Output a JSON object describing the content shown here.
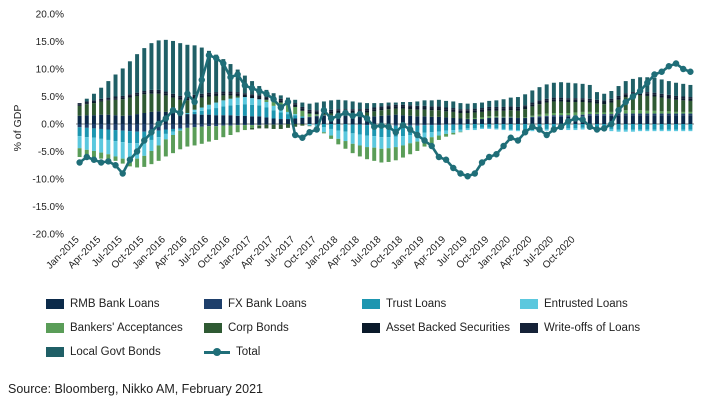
{
  "chart_data": {
    "type": "bar",
    "ylabel": "% of GDP",
    "yticks": [
      "20.0%",
      "15.0%",
      "10.0%",
      "5.0%",
      "0.0%",
      "-5.0%",
      "-10.0%",
      "-15.0%",
      "-20.0%"
    ],
    "ylim": [
      -20,
      20
    ],
    "x_tick_labels": [
      "Jan-2015",
      "Apr-2015",
      "Jul-2015",
      "Oct-2015",
      "Jan-2016",
      "Apr-2016",
      "Jul-2016",
      "Oct-2016",
      "Jan-2017",
      "Apr-2017",
      "Jul-2017",
      "Oct-2017",
      "Jan-2018",
      "Apr-2018",
      "Jul-2018",
      "Oct-2018",
      "Jan-2019",
      "Apr-2019",
      "Jul-2019",
      "Oct-2019",
      "Jan-2020",
      "Apr-2020",
      "Jul-2020",
      "Oct-2020"
    ],
    "stacked": true,
    "legend_placement": "bottom",
    "series": [
      {
        "name": "RMB Bank Loans",
        "color": "#0b2a4a",
        "values": [
          1.5,
          1.6,
          1.6,
          1.7,
          1.7,
          1.6,
          1.5,
          1.6,
          1.8,
          2.0,
          2.2,
          2.3,
          2.2,
          2.0,
          1.9,
          1.8,
          1.8,
          1.7,
          1.7,
          1.6,
          1.6,
          1.6,
          1.5,
          1.5,
          1.4,
          1.4,
          1.2,
          1.0,
          0.9,
          0.9,
          1.0,
          1.1,
          1.2,
          1.4,
          1.5,
          1.6,
          1.6,
          1.5,
          1.4,
          1.3,
          1.3,
          1.4,
          1.5,
          1.6,
          1.7,
          1.6,
          1.5,
          1.4,
          1.4,
          1.3,
          1.3,
          1.2,
          1.1,
          1.0,
          0.9,
          0.9,
          0.9,
          1.0,
          1.1,
          1.1,
          1.1,
          1.0,
          1.0,
          1.1,
          1.2,
          1.3,
          1.3,
          1.3,
          1.3,
          1.3,
          1.4,
          1.5
        ]
      },
      {
        "name": "FX Bank Loans",
        "color": "#1e3f6b",
        "values": [
          -0.6,
          -0.7,
          -0.8,
          -0.9,
          -1.0,
          -1.1,
          -1.2,
          -1.3,
          -1.4,
          -1.4,
          -1.3,
          -1.2,
          -1.0,
          -0.9,
          -0.8,
          -0.7,
          -0.6,
          -0.5,
          -0.4,
          -0.4,
          -0.3,
          -0.3,
          -0.2,
          -0.2,
          -0.2,
          -0.2,
          -0.1,
          -0.1,
          -0.1,
          0.0,
          0.0,
          0.0,
          0.1,
          0.1,
          0.1,
          0.0,
          0.0,
          0.0,
          -0.1,
          -0.1,
          -0.2,
          -0.2,
          -0.3,
          -0.3,
          -0.3,
          -0.3,
          -0.3,
          -0.3,
          -0.2,
          -0.2,
          -0.2,
          -0.1,
          -0.1,
          -0.1,
          0.0,
          0.0,
          0.0,
          0.1,
          0.1,
          0.1,
          0.1,
          0.1,
          0.1,
          0.2,
          0.2,
          0.2,
          0.3,
          0.3,
          0.3,
          0.3,
          0.3,
          0.3
        ]
      },
      {
        "name": "Trust Loans",
        "color": "#1d96b0",
        "values": [
          -1.6,
          -1.7,
          -1.7,
          -1.8,
          -1.9,
          -2.0,
          -2.1,
          -2.2,
          -2.1,
          -1.9,
          -1.6,
          -1.2,
          -0.8,
          -0.5,
          -0.2,
          0.1,
          0.4,
          0.7,
          1.0,
          1.3,
          1.6,
          1.8,
          2.0,
          2.1,
          2.1,
          2.0,
          1.8,
          1.5,
          1.2,
          0.9,
          0.6,
          0.3,
          0.0,
          -0.3,
          -0.6,
          -0.9,
          -1.2,
          -1.4,
          -1.6,
          -1.8,
          -1.9,
          -2.0,
          -2.1,
          -2.1,
          -2.0,
          -1.9,
          -1.7,
          -1.6,
          -1.4,
          -1.3,
          -1.2,
          -1.1,
          -1.0,
          -0.9,
          -0.8,
          -0.8,
          -0.7,
          -0.7,
          -0.8,
          -0.9,
          -1.0,
          -1.1,
          -1.1,
          -1.1,
          -1.0,
          -0.9,
          -0.8,
          -0.8,
          -0.8,
          -0.8,
          -0.7,
          -0.7
        ]
      },
      {
        "name": "Entrusted Loans",
        "color": "#5bc8de",
        "values": [
          -2.2,
          -2.3,
          -2.4,
          -2.5,
          -2.6,
          -2.8,
          -3.0,
          -3.0,
          -2.8,
          -2.5,
          -2.0,
          -1.5,
          -1.0,
          -0.6,
          -0.2,
          0.1,
          0.4,
          0.6,
          0.8,
          1.0,
          1.1,
          1.2,
          1.3,
          1.3,
          1.2,
          1.1,
          1.0,
          0.8,
          0.6,
          0.4,
          0.2,
          0.0,
          -0.3,
          -0.6,
          -0.9,
          -1.2,
          -1.5,
          -1.7,
          -1.9,
          -2.0,
          -2.1,
          -2.1,
          -2.1,
          -2.0,
          -1.9,
          -1.7,
          -1.5,
          -1.3,
          -1.1,
          -0.9,
          -0.7,
          -0.6,
          -0.5,
          -0.4,
          -0.3,
          -0.3,
          -0.2,
          -0.2,
          -0.2,
          -0.2,
          -0.2,
          -0.2,
          -0.2,
          -0.2,
          -0.2,
          -0.3,
          -0.3,
          -0.3,
          -0.3,
          -0.3,
          -0.3,
          -0.3
        ]
      },
      {
        "name": "Bankers' Acceptances",
        "color": "#5a9d58",
        "values": [
          -1.6,
          -1.5,
          -1.3,
          -1.1,
          -0.9,
          -0.8,
          -0.9,
          -1.2,
          -1.6,
          -2.0,
          -2.4,
          -2.8,
          -3.1,
          -3.3,
          -3.4,
          -3.4,
          -3.3,
          -3.1,
          -2.8,
          -2.5,
          -2.1,
          -1.7,
          -1.3,
          -0.9,
          -0.5,
          -0.1,
          0.4,
          0.8,
          1.2,
          1.4,
          1.3,
          1.0,
          0.6,
          0.2,
          -0.2,
          -0.6,
          -1.0,
          -1.4,
          -1.7,
          -2.0,
          -2.2,
          -2.4,
          -2.5,
          -2.5,
          -2.4,
          -2.2,
          -2.0,
          -1.7,
          -1.4,
          -1.1,
          -0.8,
          -0.5,
          -0.3,
          -0.1,
          0.1,
          0.2,
          0.3,
          0.3,
          0.2,
          0.1,
          0.1,
          0.0,
          0.1,
          0.2,
          0.3,
          0.4,
          0.4,
          0.4,
          0.4,
          0.5,
          0.5,
          0.4
        ]
      },
      {
        "name": "Corp Bonds",
        "color": "#2f5a33",
        "values": [
          1.8,
          2.0,
          2.2,
          2.4,
          2.6,
          2.8,
          3.0,
          3.2,
          3.3,
          3.4,
          3.3,
          3.2,
          3.0,
          2.8,
          2.5,
          2.3,
          2.0,
          1.8,
          1.5,
          1.2,
          0.9,
          0.6,
          0.3,
          0.0,
          -0.3,
          -0.5,
          -0.7,
          -0.8,
          -0.8,
          -0.7,
          -0.5,
          -0.3,
          -0.1,
          0.1,
          0.2,
          0.3,
          0.4,
          0.5,
          0.6,
          0.7,
          0.8,
          0.9,
          1.0,
          1.1,
          1.1,
          1.2,
          1.2,
          1.2,
          1.2,
          1.2,
          1.2,
          1.1,
          1.1,
          1.0,
          1.0,
          1.0,
          1.0,
          1.0,
          1.0,
          1.1,
          1.2,
          1.3,
          1.5,
          1.7,
          1.9,
          2.0,
          2.1,
          2.1,
          2.0,
          1.9,
          1.8,
          1.7
        ]
      },
      {
        "name": "Asset Backed Securities",
        "color": "#0a1a2a",
        "values": [
          0.2,
          0.2,
          0.2,
          0.2,
          0.2,
          0.3,
          0.3,
          0.3,
          0.3,
          0.3,
          0.4,
          0.4,
          0.4,
          0.4,
          0.4,
          0.4,
          0.4,
          0.4,
          0.4,
          0.4,
          0.4,
          0.4,
          0.4,
          0.4,
          0.4,
          0.4,
          0.4,
          0.4,
          0.4,
          0.4,
          0.4,
          0.4,
          0.4,
          0.4,
          0.4,
          0.4,
          0.4,
          0.4,
          0.4,
          0.4,
          0.4,
          0.4,
          0.4,
          0.4,
          0.4,
          0.4,
          0.4,
          0.4,
          0.4,
          0.4,
          0.4,
          0.4,
          0.4,
          0.4,
          0.4,
          0.4,
          0.4,
          0.4,
          0.4,
          0.4,
          0.4,
          0.4,
          0.4,
          0.4,
          0.4,
          0.4,
          0.4,
          0.4,
          0.4,
          0.4,
          0.4,
          0.4
        ]
      },
      {
        "name": "Write-offs of Loans",
        "color": "#152238",
        "values": [
          0.3,
          0.3,
          0.3,
          0.3,
          0.3,
          0.3,
          0.3,
          0.3,
          0.3,
          0.3,
          0.3,
          0.3,
          0.3,
          0.3,
          0.3,
          0.3,
          0.3,
          0.3,
          0.3,
          0.3,
          0.3,
          0.3,
          0.3,
          0.3,
          0.3,
          0.3,
          0.3,
          0.3,
          0.3,
          0.3,
          0.3,
          0.3,
          0.3,
          0.3,
          0.3,
          0.3,
          0.3,
          0.3,
          0.3,
          0.3,
          0.3,
          0.3,
          0.3,
          0.3,
          0.3,
          0.3,
          0.3,
          0.3,
          0.3,
          0.3,
          0.3,
          0.3,
          0.3,
          0.3,
          0.3,
          0.3,
          0.3,
          0.3,
          0.3,
          0.3,
          0.3,
          0.3,
          0.3,
          0.3,
          0.3,
          0.3,
          0.3,
          0.3,
          0.3,
          0.3,
          0.3,
          0.3
        ]
      },
      {
        "name": "Local Govt Bonds",
        "color": "#1f5f66",
        "values": [
          0.0,
          0.5,
          1.2,
          2.0,
          3.0,
          4.0,
          5.0,
          6.0,
          7.0,
          7.8,
          8.5,
          9.0,
          9.4,
          9.6,
          9.6,
          9.4,
          9.0,
          8.4,
          7.6,
          6.8,
          5.9,
          5.0,
          4.1,
          3.2,
          2.4,
          1.7,
          1.1,
          0.8,
          0.6,
          0.5,
          0.6,
          0.8,
          1.1,
          1.4,
          1.6,
          1.7,
          1.7,
          1.6,
          1.4,
          1.2,
          1.0,
          0.8,
          0.6,
          0.5,
          0.4,
          0.5,
          0.6,
          0.8,
          1.0,
          1.1,
          1.2,
          1.2,
          1.2,
          1.1,
          1.0,
          1.0,
          1.0,
          1.1,
          1.2,
          1.4,
          1.6,
          1.8,
          2.0,
          2.2,
          2.4,
          2.6,
          2.7,
          2.8,
          2.8,
          2.7,
          2.6,
          2.5
        ]
      }
    ],
    "total": {
      "name": "Total",
      "color": "#1f6e78",
      "values": [
        -7.0,
        -6.0,
        -6.5,
        -7.0,
        -6.8,
        -7.5,
        -9.0,
        -6.5,
        -5.0,
        -3.0,
        -1.5,
        0.0,
        1.0,
        2.5,
        2.0,
        5.5,
        4.0,
        8.0,
        12.5,
        12.0,
        11.0,
        8.5,
        9.0,
        7.0,
        6.5,
        6.0,
        5.5,
        4.5,
        3.0,
        4.0,
        -2.0,
        -2.5,
        -1.5,
        -1.0,
        2.5,
        1.0,
        1.5,
        2.0,
        1.5,
        1.8,
        1.0,
        -0.5,
        -0.3,
        -0.5,
        -1.5,
        -0.2,
        -1.0,
        -2.0,
        -3.0,
        -4.0,
        -6.0,
        -6.5,
        -8.0,
        -9.0,
        -9.5,
        -9.0,
        -7.0,
        -6.0,
        -5.5,
        -4.0,
        -2.5,
        -3.0,
        -1.5,
        -0.5,
        -1.0,
        -2.0,
        -1.0,
        -0.5,
        0.5,
        1.0,
        0.8,
        -0.5
      ]
    },
    "total_points_shown_after": "Oct-2019",
    "total_extension": [
      -1.0,
      -0.8,
      0.0,
      2.5,
      4.0,
      5.0,
      6.0,
      7.5,
      9.0,
      9.5,
      10.5,
      11.0,
      10.0,
      9.5
    ],
    "bar_extension": {
      "Local Govt Bonds": [
        1.4,
        1.2,
        1.4,
        1.8,
        2.2,
        2.4,
        2.6,
        2.7,
        2.7,
        2.6,
        2.5,
        2.4,
        2.3,
        2.2
      ],
      "Corp Bonds": [
        1.6,
        1.5,
        1.7,
        2.0,
        2.4,
        2.6,
        2.7,
        2.7,
        2.6,
        2.5,
        2.3,
        2.2,
        2.1,
        2.0
      ],
      "RMB Bank Loans": [
        1.5,
        1.5,
        1.5,
        1.6,
        1.6,
        1.6,
        1.6,
        1.6,
        1.6,
        1.6,
        1.6,
        1.6,
        1.6,
        1.6
      ],
      "Entrusted Loans": [
        -0.3,
        -0.3,
        -0.4,
        -0.4,
        -0.4,
        -0.4,
        -0.3,
        -0.3,
        -0.3,
        -0.3,
        -0.3,
        -0.3,
        -0.3,
        -0.3
      ],
      "Trust Loans": [
        -0.7,
        -0.8,
        -0.9,
        -1.0,
        -1.0,
        -1.0,
        -1.0,
        -1.0,
        -1.0,
        -1.0,
        -1.0,
        -1.0,
        -1.0,
        -1.0
      ],
      "Bankers' Acceptances": [
        0.3,
        0.3,
        0.4,
        0.5,
        0.6,
        0.6,
        0.6,
        0.5,
        0.5,
        0.4,
        0.4,
        0.3,
        0.3,
        0.3
      ]
    }
  },
  "legend": [
    {
      "label": "RMB Bank Loans",
      "color": "#0b2a4a"
    },
    {
      "label": "FX Bank Loans",
      "color": "#1e3f6b"
    },
    {
      "label": "Trust Loans",
      "color": "#1d96b0"
    },
    {
      "label": "Entrusted Loans",
      "color": "#5bc8de"
    },
    {
      "label": "Bankers' Acceptances",
      "color": "#5a9d58"
    },
    {
      "label": "Corp Bonds",
      "color": "#2f5a33"
    },
    {
      "label": "Asset Backed Securities",
      "color": "#0a1a2a"
    },
    {
      "label": "Write-offs of Loans",
      "color": "#152238"
    },
    {
      "label": "Local Govt Bonds",
      "color": "#1f5f66"
    },
    {
      "label": "Total",
      "color": "#1f6e78"
    }
  ],
  "source": "Source: Bloomberg, Nikko AM, February 2021"
}
